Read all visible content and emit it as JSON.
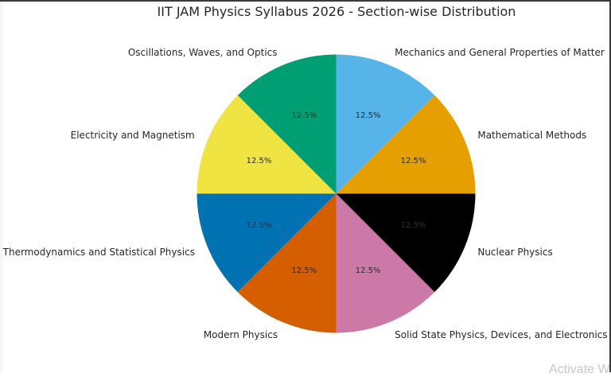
{
  "chart_data": {
    "type": "pie",
    "title": "IIT JAM Physics Syllabus 2026 - Section-wise Distribution",
    "startangle": 90,
    "direction": "clockwise",
    "autopct_format": "%1.1f%%",
    "categories": [
      "Mechanics and General Properties of Matter",
      "Mathematical Methods",
      "Nuclear Physics",
      "Solid State Physics, Devices, and Electronics",
      "Modern Physics",
      "Thermodynamics and Statistical Physics",
      "Electricity and Magnetism",
      "Oscillations, Waves, and Optics"
    ],
    "values": [
      12.5,
      12.5,
      12.5,
      12.5,
      12.5,
      12.5,
      12.5,
      12.5
    ],
    "percent_labels": [
      "12.5%",
      "12.5%",
      "12.5%",
      "12.5%",
      "12.5%",
      "12.5%",
      "12.5%",
      "12.5%"
    ],
    "colors": [
      "#56b4e9",
      "#e69f00",
      "#000000",
      "#cc79a7",
      "#d55e00",
      "#0072b2",
      "#f0e442",
      "#009e73"
    ],
    "legend": "none (labels placed outside slices)"
  },
  "overlay": {
    "watermark": "Activate W"
  }
}
